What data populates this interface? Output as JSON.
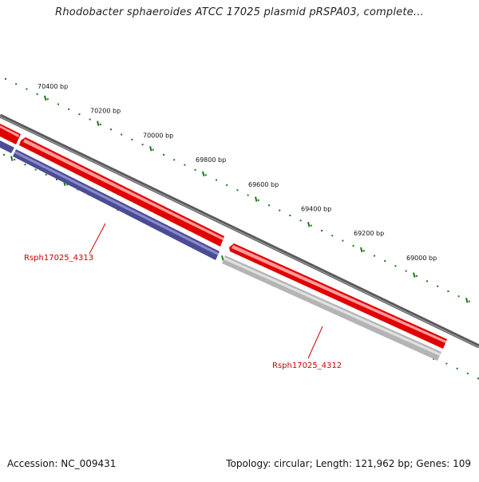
{
  "title": "Rhodobacter sphaeroides ATCC 17025 plasmid pRSPA03, complete...",
  "footer": {
    "accession_label": "Accession:",
    "accession": "NC_009431",
    "topology_label": "Topology:",
    "topology": "circular",
    "length_label": "Length:",
    "length": "121,962 bp",
    "genes_label": "Genes:",
    "genes": "109"
  },
  "ruler": {
    "ticks": [
      "70400 bp",
      "70200 bp",
      "70000 bp",
      "69800 bp",
      "69600 bp",
      "69400 bp",
      "69200 bp",
      "69000 bp"
    ],
    "tick_color": "#1a7a1a"
  },
  "genes": [
    {
      "locus_tag": "Rsph17025_4313",
      "label_color": "#cc0000",
      "strand": "reverse",
      "fill": "#4b4b96"
    },
    {
      "locus_tag": "Rsph17025_4312",
      "label_color": "#cc0000",
      "strand": "reverse",
      "fill": "#b4b4b4"
    }
  ],
  "colors": {
    "backbone": "#777777",
    "forward_gene": "#e60000",
    "reverse_gene_1": "#4b4b96",
    "reverse_gene_2": "#b4b4b4"
  }
}
